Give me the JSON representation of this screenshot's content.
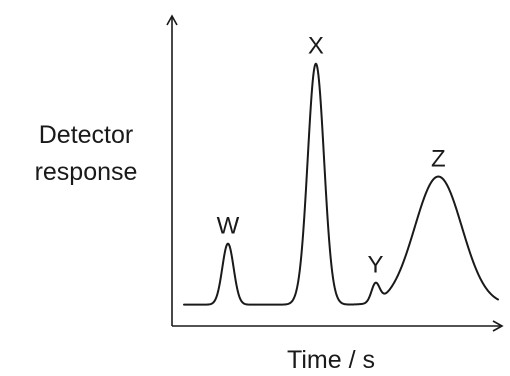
{
  "chart_data": {
    "type": "line",
    "title": "",
    "xlabel": "Time / s",
    "ylabel_lines": [
      "Detector",
      "response"
    ],
    "grid": false,
    "legend": "none",
    "baseline": 0.07,
    "peaks": [
      {
        "label": "W",
        "center": 0.14,
        "height": 0.2,
        "width": 0.018
      },
      {
        "label": "X",
        "center": 0.42,
        "height": 0.79,
        "width": 0.026
      },
      {
        "label": "Y",
        "center": 0.61,
        "height": 0.06,
        "width": 0.013
      },
      {
        "label": "Z",
        "center": 0.81,
        "height": 0.42,
        "width": 0.075
      }
    ]
  }
}
